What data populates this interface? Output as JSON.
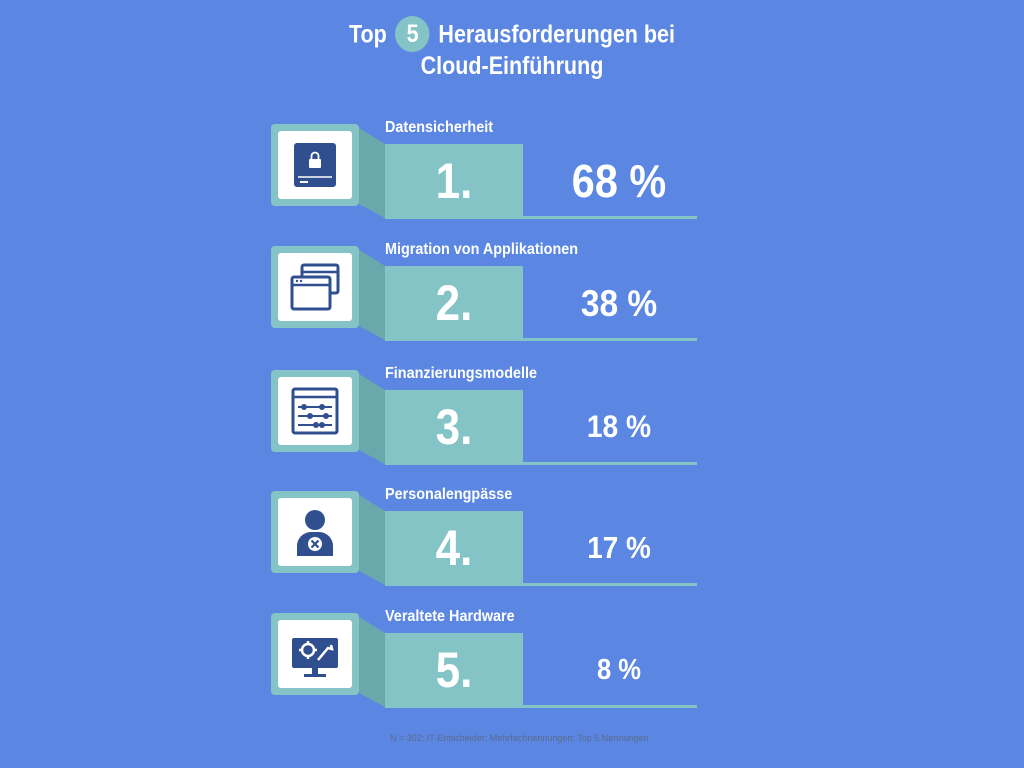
{
  "chart_data": {
    "type": "table",
    "title_prefix": "Top",
    "title_number": "5",
    "title_suffix": "Herausforderungen bei",
    "title_line2": "Cloud-Einführung",
    "items": [
      {
        "rank": "1.",
        "label": "Datensicherheit",
        "value": 68,
        "value_text": "68 %",
        "icon": "locked-drive-icon"
      },
      {
        "rank": "2.",
        "label": "Migration von Applikationen",
        "value": 38,
        "value_text": "38 %",
        "icon": "browser-windows-icon"
      },
      {
        "rank": "3.",
        "label": "Finanzierungsmodelle",
        "value": 18,
        "value_text": "18 %",
        "icon": "abacus-icon"
      },
      {
        "rank": "4.",
        "label": "Personalengpässe",
        "value": 17,
        "value_text": "17 %",
        "icon": "person-x-icon"
      },
      {
        "rank": "5.",
        "label": "Veraltete Hardware",
        "value": 8,
        "value_text": "8 %",
        "icon": "monitor-tools-icon"
      }
    ],
    "footnote": "N = 302; IT-Entscheider; Mehrfachnennungen; Top 5 Nennungen"
  },
  "colors": {
    "background": "#5b87e3",
    "teal": "#84c4c6",
    "teal_dark": "#6aa9ab",
    "icon_blue": "#2f4f8f",
    "text": "#ffffff"
  }
}
